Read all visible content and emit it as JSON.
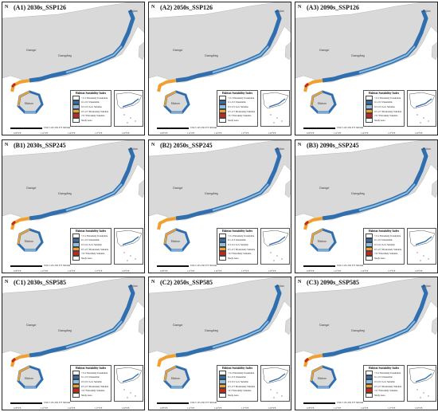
{
  "panels": [
    {
      "title": "(A1) 2030s_SSP126",
      "variant": 0
    },
    {
      "title": "(A2) 2050s_SSP126",
      "variant": 1
    },
    {
      "title": "(A3) 2090s_SSP126",
      "variant": 2
    },
    {
      "title": "(B1) 2030s_SSP245",
      "variant": 0
    },
    {
      "title": "(B2) 2050s_SSP245",
      "variant": 1
    },
    {
      "title": "(B3) 2090s_SSP245",
      "variant": 2
    },
    {
      "title": "(C1) 2030s_SSP585",
      "variant": 0
    },
    {
      "title": "(C2) 2050s_SSP585",
      "variant": 1
    },
    {
      "title": "(C3) 2090s_SSP585",
      "variant": 2
    }
  ],
  "north_symbol": "N",
  "place_labels": {
    "fujian": "Fujian",
    "guangxi": "Guangxi",
    "guangdong": "Guangdong",
    "hainan": "Hainan"
  },
  "legend": {
    "title": "Habitat Suitability Index",
    "items": [
      {
        "label": "< 0.1  Extremely Unsuitable",
        "color": "#ffffff"
      },
      {
        "label": "0.1–0.3  Unsuitable",
        "color": "#2f6fb0"
      },
      {
        "label": "0.3–0.5  Low Suitable",
        "color": "#8fbfe0"
      },
      {
        "label": "0.5–0.7  Moderately Suitable",
        "color": "#f0a030"
      },
      {
        "label": ">0.7  Extremely Suitable",
        "color": "#c0281c"
      },
      {
        "label": "Study Area",
        "color": "#ffffff"
      }
    ]
  },
  "scale_text": "0  62.5 125  250  375  500 km",
  "longitudes": [
    "108°0'E",
    "111°0'E",
    "114°0'E",
    "117°0'E",
    "120°0'E"
  ],
  "colors": {
    "land": "#d9d9d9",
    "sea": "#ffffff",
    "coast_unsuitable": "#2f6fb0",
    "coast_low": "#8fbfe0",
    "coast_moderate": "#f0a030",
    "coast_high": "#c0281c"
  }
}
